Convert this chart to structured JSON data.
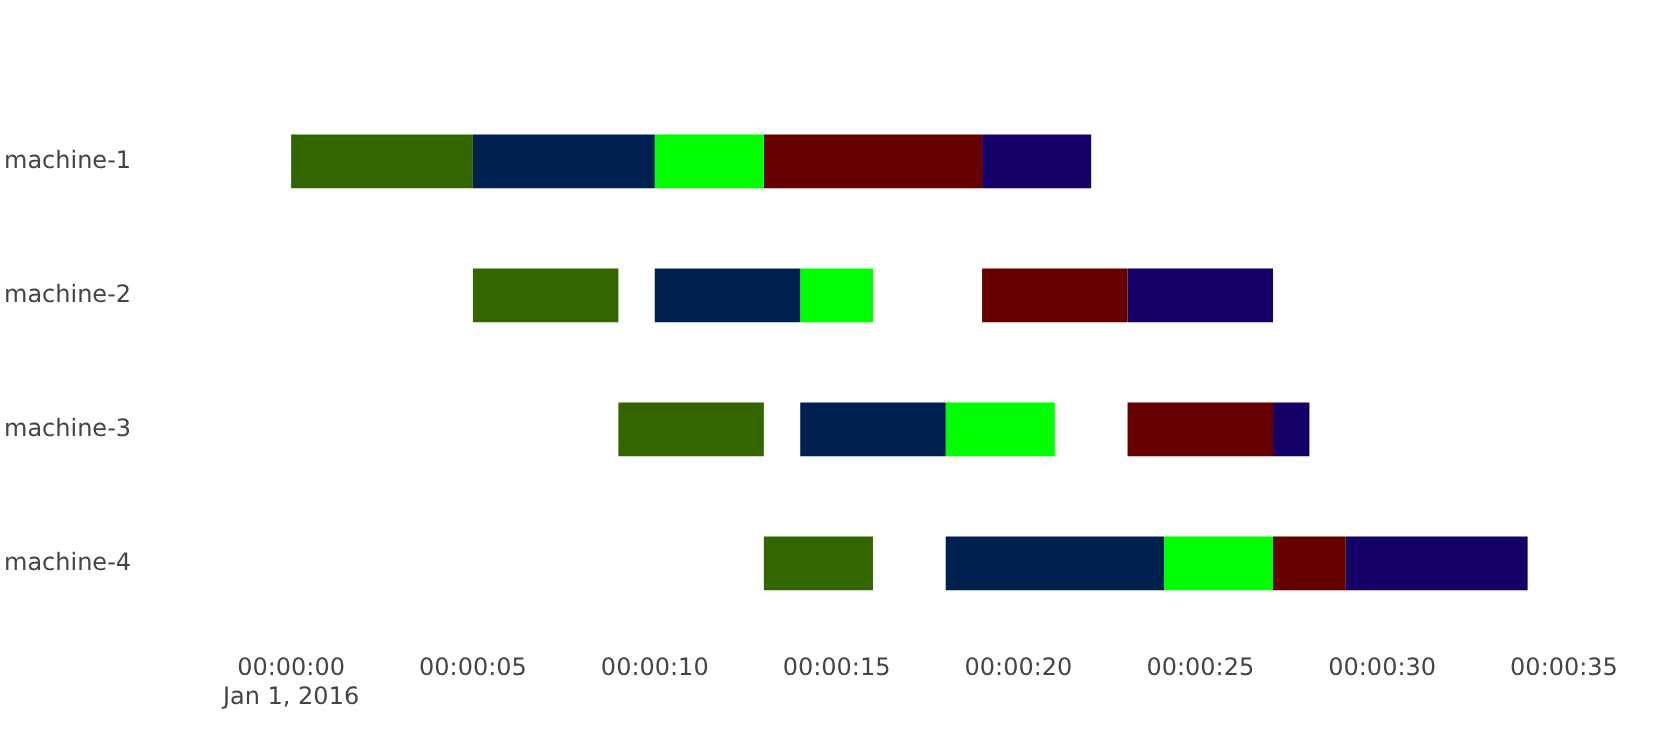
{
  "chart_data": {
    "type": "bar",
    "orientation": "horizontal",
    "categories": [
      "machine-1",
      "machine-2",
      "machine-3",
      "machine-4"
    ],
    "series": [
      {
        "color": "#336600",
        "base": [
          0,
          5,
          9,
          13
        ],
        "values": [
          5,
          4,
          4,
          3
        ]
      },
      {
        "color": "#00204f",
        "base": [
          5,
          10,
          14,
          18
        ],
        "values": [
          5,
          4,
          4,
          6
        ]
      },
      {
        "color": "#00ff00",
        "base": [
          10,
          14,
          18,
          24
        ],
        "values": [
          3,
          2,
          3,
          3
        ]
      },
      {
        "color": "#660000",
        "base": [
          13,
          19,
          23,
          27
        ],
        "values": [
          6,
          4,
          4,
          2
        ]
      },
      {
        "color": "#140066",
        "base": [
          19,
          23,
          27,
          29
        ],
        "values": [
          3,
          4,
          1,
          5
        ]
      }
    ],
    "xlim": [
      0,
      35
    ],
    "xticks": [
      {
        "value": 0,
        "label": "00:00:00\nJan 1, 2016"
      },
      {
        "value": 5,
        "label": "00:00:05"
      },
      {
        "value": 10,
        "label": "00:00:10"
      },
      {
        "value": 15,
        "label": "00:00:15"
      },
      {
        "value": 20,
        "label": "00:00:20"
      },
      {
        "value": 25,
        "label": "00:00:25"
      },
      {
        "value": 30,
        "label": "00:00:30"
      },
      {
        "value": 35,
        "label": "00:00:35"
      }
    ],
    "grid": false,
    "legend": false
  }
}
